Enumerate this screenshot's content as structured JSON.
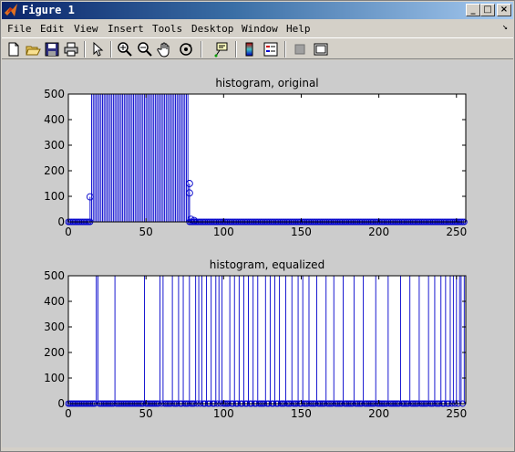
{
  "window": {
    "title": "Figure 1",
    "buttons": [
      "_",
      "□",
      "×"
    ]
  },
  "menu": {
    "items": [
      "File",
      "Edit",
      "View",
      "Insert",
      "Tools",
      "Desktop",
      "Window",
      "Help"
    ],
    "overflow_arrow": "↘"
  },
  "toolbar": {
    "icons": [
      "new-figure-icon",
      "open-file-icon",
      "save-icon",
      "print-icon",
      "pointer-icon",
      "zoom-in-icon",
      "zoom-out-icon",
      "pan-hand-icon",
      "rotate-3d-icon",
      "data-cursor-icon",
      "colorbar-icon",
      "legend-icon",
      "hide-plot-tools-icon",
      "show-plot-tools-icon"
    ]
  },
  "colors": {
    "stem": "#0000cc",
    "axes_bg": "#ffffff",
    "figure_bg": "#cccccc"
  },
  "chart_data": [
    {
      "type": "stem",
      "title": "histogram, original",
      "xlabel": "",
      "ylabel": "",
      "xlim": [
        0,
        256
      ],
      "ylim": [
        0,
        500
      ],
      "xticks": [
        0,
        50,
        100,
        150,
        200,
        250
      ],
      "yticks": [
        0,
        100,
        200,
        300,
        400,
        500
      ],
      "special_points": [
        [
          14,
          98
        ],
        [
          78,
          113
        ],
        [
          78,
          150
        ],
        [
          79,
          10
        ],
        [
          81,
          5
        ]
      ],
      "high_range": [
        15,
        77
      ],
      "high_value": 500,
      "low_value": 0
    },
    {
      "type": "stem",
      "title": "histogram, equalized",
      "xlabel": "",
      "ylabel": "",
      "xlim": [
        0,
        256
      ],
      "ylim": [
        0,
        500
      ],
      "xticks": [
        0,
        50,
        100,
        150,
        200,
        250
      ],
      "yticks": [
        0,
        100,
        200,
        300,
        400,
        500
      ],
      "nonzero_bins": [
        18,
        19,
        30,
        49,
        59,
        61,
        67,
        71,
        74,
        78,
        82,
        84,
        86,
        89,
        92,
        95,
        97,
        99,
        104,
        107,
        110,
        113,
        116,
        119,
        122,
        127,
        130,
        133,
        136,
        140,
        144,
        148,
        151,
        155,
        160,
        166,
        171,
        177,
        184,
        190,
        198,
        206,
        214,
        220,
        226,
        232,
        236,
        240,
        243,
        246,
        248,
        250,
        252,
        253,
        255
      ],
      "high_value": 500,
      "low_value": 0
    }
  ]
}
